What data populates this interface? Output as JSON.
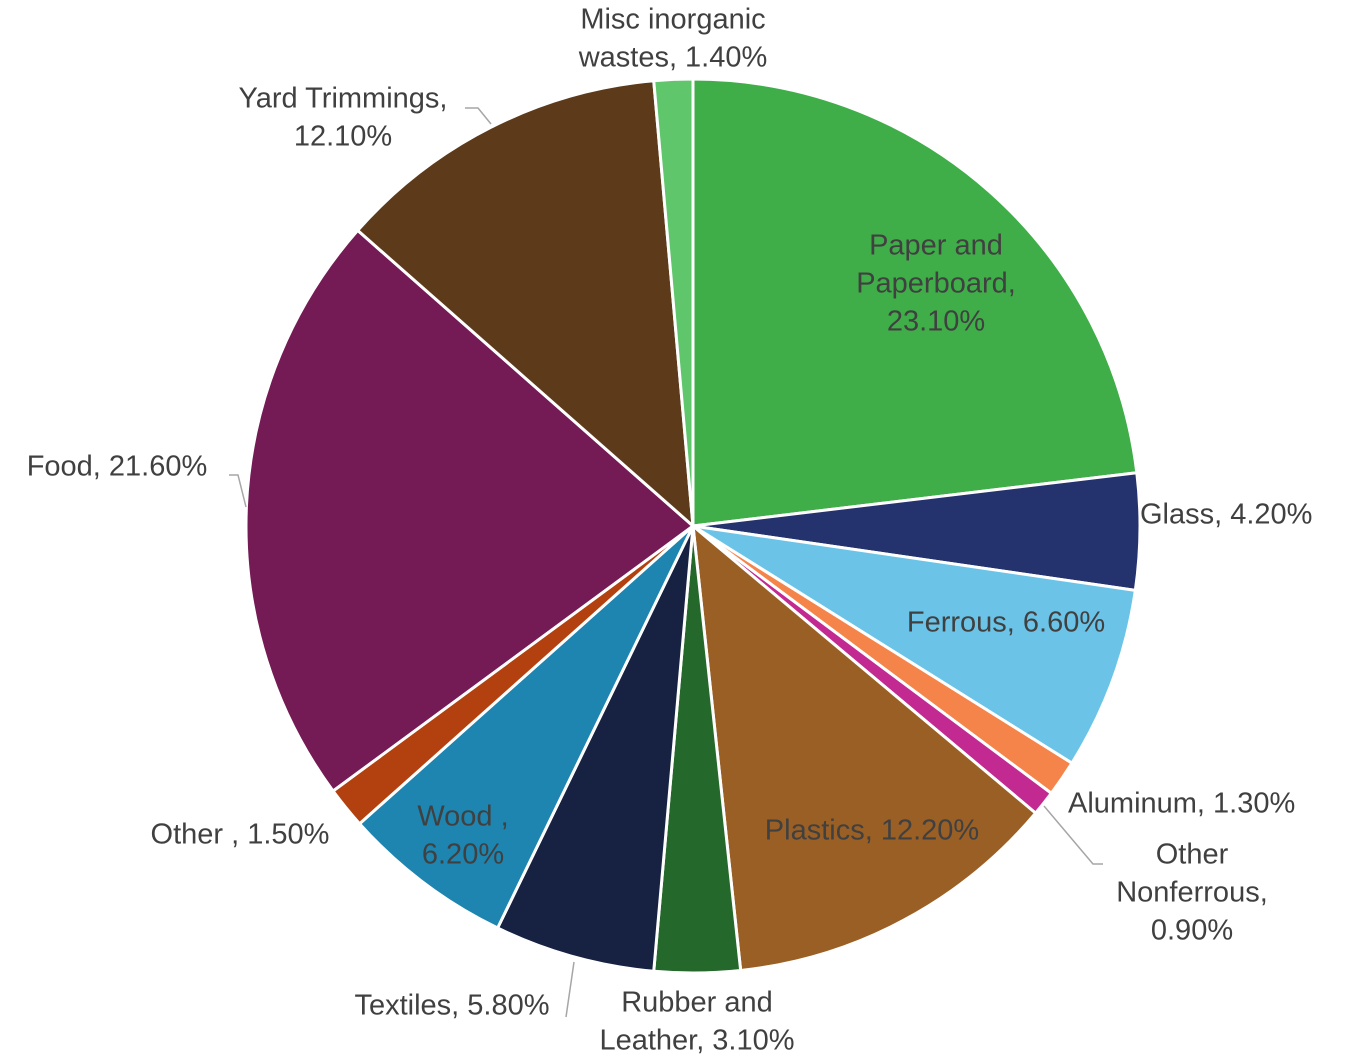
{
  "chart_data": {
    "type": "pie",
    "title": "",
    "slices": [
      {
        "name": "Paper and Paperboard",
        "value": 23.1,
        "label": [
          "Paper and",
          "Paperboard,",
          "23.10%"
        ],
        "color": "#3fae49"
      },
      {
        "name": "Glass",
        "value": 4.2,
        "label": [
          "Glass, 4.20%"
        ],
        "color": "#24326e"
      },
      {
        "name": "Ferrous",
        "value": 6.6,
        "label": [
          "Ferrous, 6.60%"
        ],
        "color": "#6bc4e8"
      },
      {
        "name": "Aluminum",
        "value": 1.3,
        "label": [
          "Aluminum, 1.30%"
        ],
        "color": "#f4844a"
      },
      {
        "name": "Other Nonferrous",
        "value": 0.9,
        "label": [
          "Other",
          "Nonferrous,",
          "0.90%"
        ],
        "color": "#c22a92"
      },
      {
        "name": "Plastics",
        "value": 12.2,
        "label": [
          "Plastics, 12.20%"
        ],
        "color": "#9a5f25"
      },
      {
        "name": "Rubber and Leather",
        "value": 3.1,
        "label": [
          "Rubber and",
          "Leather, 3.10%"
        ],
        "color": "#25682b"
      },
      {
        "name": "Textiles",
        "value": 5.8,
        "label": [
          "Textiles, 5.80%"
        ],
        "color": "#172142"
      },
      {
        "name": "Wood",
        "value": 6.2,
        "label": [
          "Wood ,",
          "6.20%"
        ],
        "color": "#1e85b0"
      },
      {
        "name": "Other",
        "value": 1.5,
        "label": [
          "Other , 1.50%"
        ],
        "color": "#b3400f"
      },
      {
        "name": "Food",
        "value": 21.6,
        "label": [
          "Food, 21.60%"
        ],
        "color": "#741a54"
      },
      {
        "name": "Yard Trimmings",
        "value": 12.1,
        "label": [
          "Yard Trimmings,",
          "12.10%"
        ],
        "color": "#5c3a1a"
      },
      {
        "name": "Misc inorganic wastes",
        "value": 1.4,
        "label": [
          "Misc inorganic",
          "wastes, 1.40%"
        ],
        "color": "#5fc66c"
      }
    ],
    "start_angle": "12 o'clock",
    "direction": "clockwise",
    "legend": "none",
    "data_labels": "category name and percentage"
  }
}
